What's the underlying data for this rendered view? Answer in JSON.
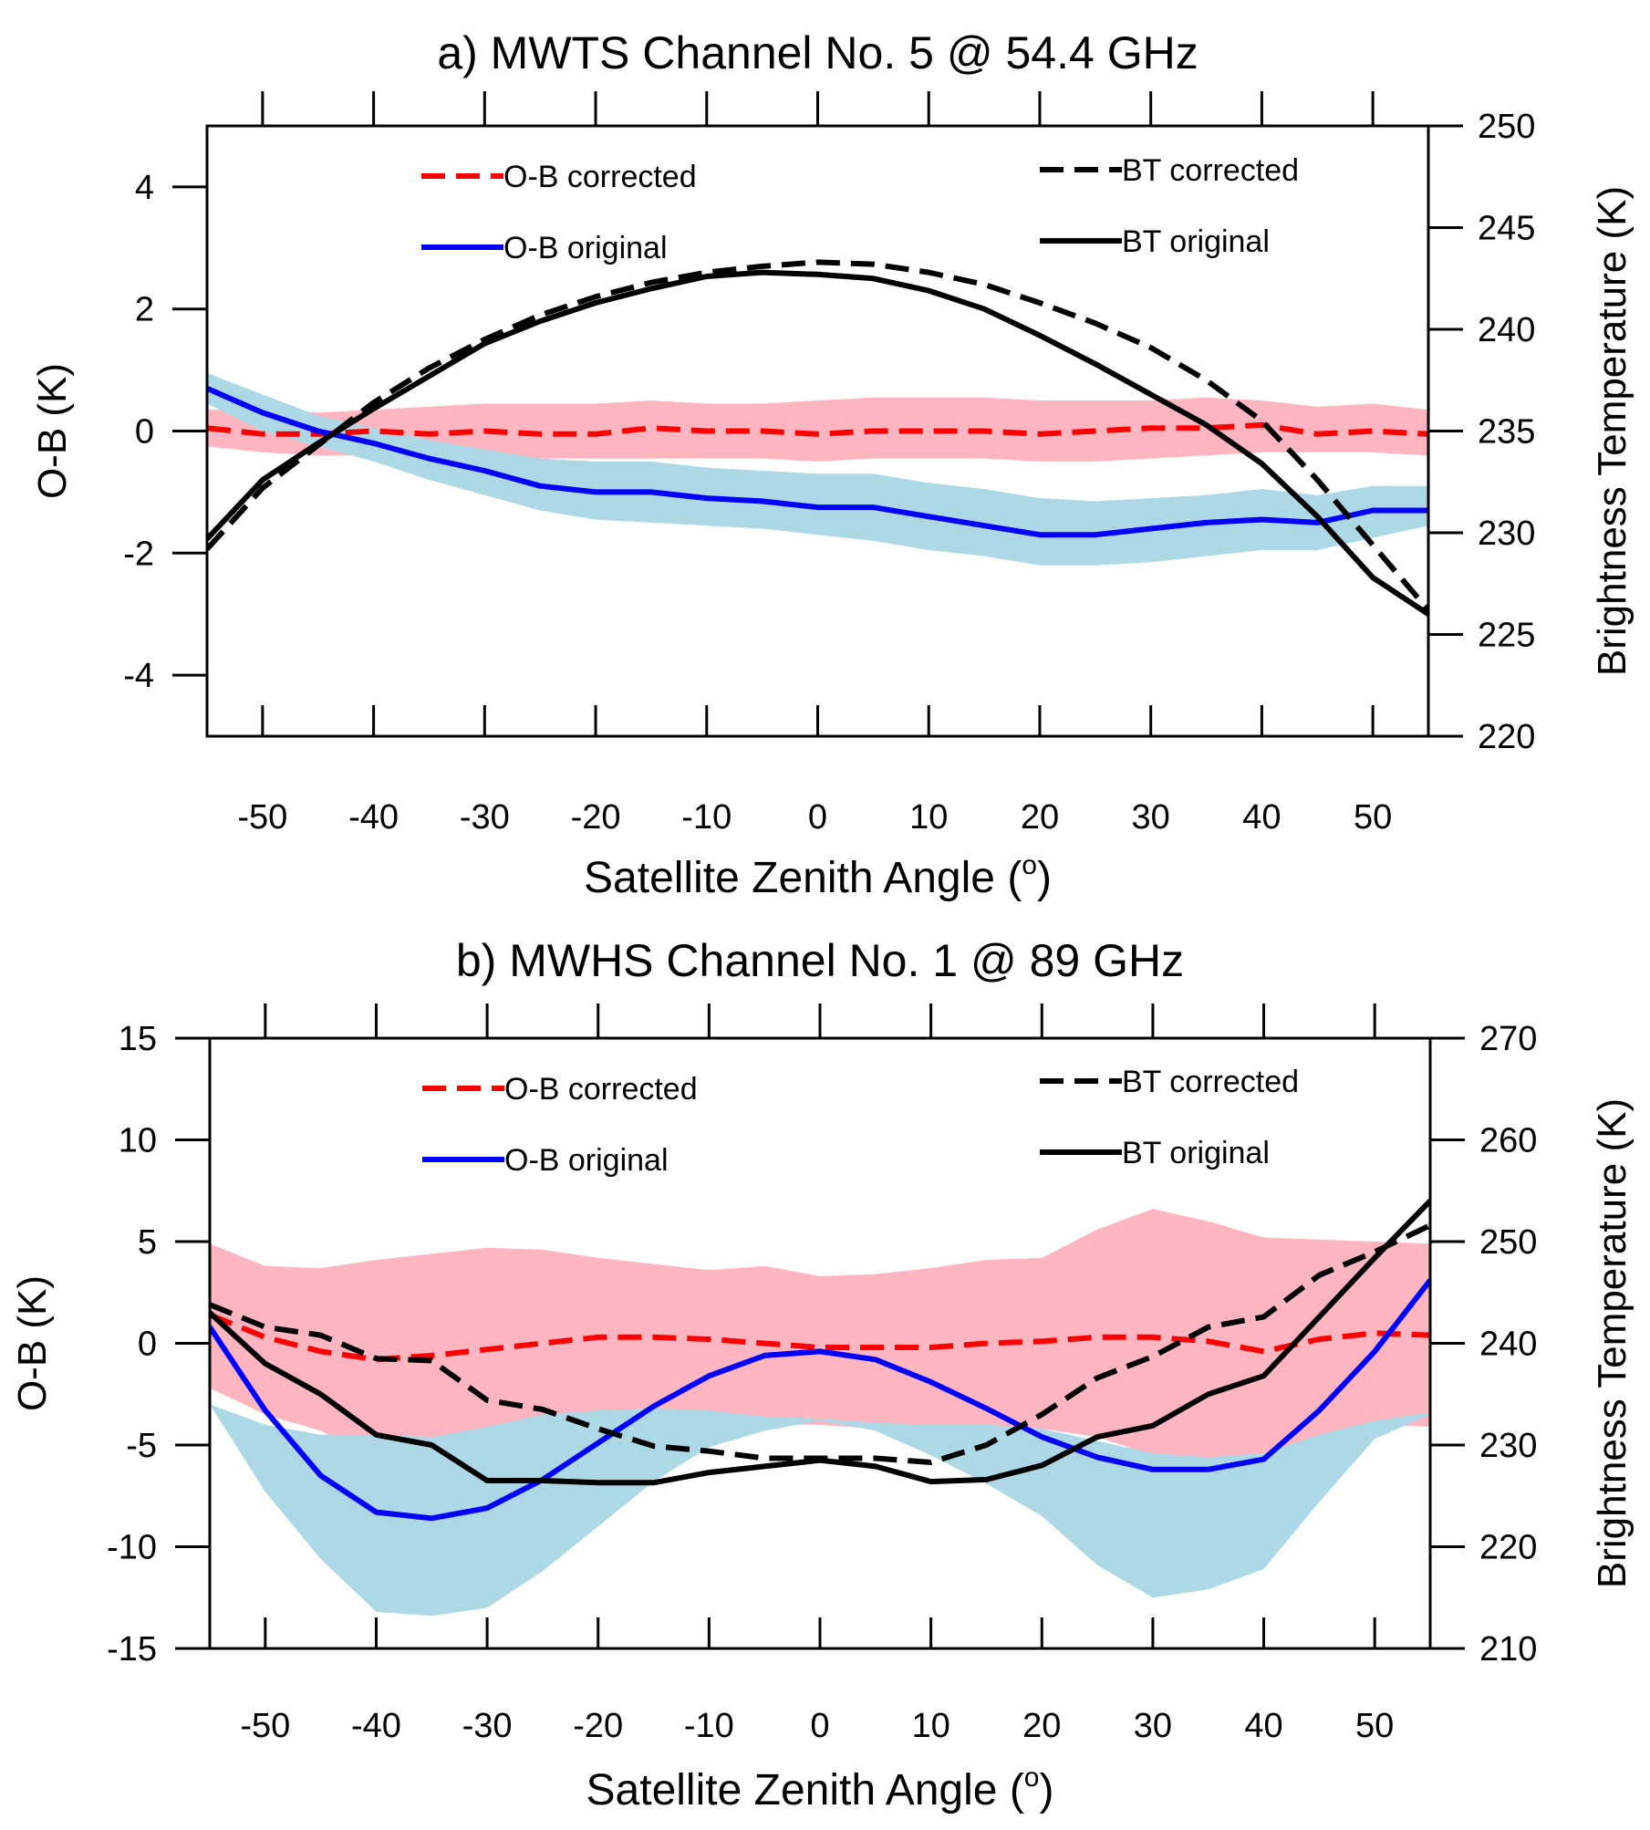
{
  "chart_data": [
    {
      "type": "line",
      "title": "a) MWTS Channel No. 5 @ 54.4 GHz",
      "xlabel": "Satellite Zenith Angle (",
      "xlabel_sup": "o",
      "xlabel_end": ")",
      "ylabel": "O-B (K)",
      "ylabel_right": "Brightness Temperature (K)",
      "xlim": [
        -55,
        55
      ],
      "ylim": [
        -5,
        5
      ],
      "ylim_right": [
        220,
        250
      ],
      "x_ticks": [
        -50,
        -40,
        -30,
        -20,
        -10,
        0,
        10,
        20,
        30,
        40,
        50
      ],
      "y_ticks": [
        -4,
        -2,
        0,
        2,
        4
      ],
      "y_ticks_right": [
        220,
        225,
        230,
        235,
        240,
        245,
        250
      ],
      "x": [
        -55,
        -50,
        -45,
        -40,
        -35,
        -30,
        -25,
        -20,
        -15,
        -10,
        -5,
        0,
        5,
        10,
        15,
        20,
        25,
        30,
        35,
        40,
        45,
        50,
        55
      ],
      "bands": [
        {
          "series": "O-B corrected",
          "color": "#ffb6c1",
          "upper": [
            0.35,
            0.35,
            0.3,
            0.35,
            0.4,
            0.45,
            0.45,
            0.45,
            0.5,
            0.45,
            0.45,
            0.5,
            0.55,
            0.55,
            0.55,
            0.5,
            0.5,
            0.5,
            0.55,
            0.5,
            0.4,
            0.45,
            0.35
          ],
          "lower": [
            -0.25,
            -0.35,
            -0.4,
            -0.4,
            -0.4,
            -0.45,
            -0.45,
            -0.45,
            -0.45,
            -0.45,
            -0.45,
            -0.5,
            -0.45,
            -0.45,
            -0.45,
            -0.5,
            -0.5,
            -0.45,
            -0.4,
            -0.35,
            -0.35,
            -0.35,
            -0.4
          ]
        },
        {
          "series": "O-B original",
          "color": "#add8e6",
          "upper": [
            0.95,
            0.6,
            0.25,
            0.05,
            -0.15,
            -0.3,
            -0.45,
            -0.5,
            -0.5,
            -0.6,
            -0.65,
            -0.7,
            -0.7,
            -0.85,
            -0.95,
            -1.1,
            -1.15,
            -1.1,
            -1.05,
            -0.95,
            -1.05,
            -0.9,
            -0.9
          ],
          "lower": [
            0.45,
            0.0,
            -0.25,
            -0.5,
            -0.8,
            -1.05,
            -1.3,
            -1.45,
            -1.5,
            -1.55,
            -1.6,
            -1.7,
            -1.8,
            -1.95,
            -2.05,
            -2.2,
            -2.2,
            -2.15,
            -2.05,
            -1.95,
            -1.95,
            -1.75,
            -1.55
          ]
        }
      ],
      "series": [
        {
          "name": "O-B corrected",
          "axis": "left",
          "color": "#ff0000",
          "dash": true,
          "values": [
            0.05,
            -0.05,
            -0.05,
            0.0,
            -0.05,
            0.0,
            -0.05,
            -0.05,
            0.05,
            0.0,
            0.0,
            -0.05,
            0.0,
            0.0,
            0.0,
            -0.05,
            0.0,
            0.05,
            0.05,
            0.1,
            -0.05,
            0.0,
            -0.05
          ]
        },
        {
          "name": "O-B original",
          "axis": "left",
          "color": "#0000ff",
          "dash": false,
          "values": [
            0.7,
            0.3,
            0.0,
            -0.2,
            -0.45,
            -0.65,
            -0.9,
            -1.0,
            -1.0,
            -1.1,
            -1.15,
            -1.25,
            -1.25,
            -1.4,
            -1.55,
            -1.7,
            -1.7,
            -1.6,
            -1.5,
            -1.45,
            -1.5,
            -1.3,
            -1.3
          ]
        },
        {
          "name": "BT corrected",
          "axis": "right",
          "color": "#000000",
          "dash": true,
          "values": [
            229.2,
            232.2,
            234.3,
            236.4,
            238.1,
            239.5,
            240.7,
            241.6,
            242.3,
            242.8,
            243.1,
            243.3,
            243.2,
            242.8,
            242.2,
            241.3,
            240.3,
            239.1,
            237.5,
            235.5,
            232.6,
            229.4,
            226.2
          ]
        },
        {
          "name": "BT original",
          "axis": "right",
          "color": "#000000",
          "dash": false,
          "values": [
            229.7,
            232.6,
            234.4,
            236.1,
            237.7,
            239.3,
            240.4,
            241.3,
            242.0,
            242.6,
            242.8,
            242.7,
            242.5,
            241.9,
            241.0,
            239.7,
            238.3,
            236.8,
            235.3,
            233.4,
            230.8,
            227.8,
            226.0
          ]
        }
      ],
      "legend": [
        {
          "label": "O-B corrected",
          "color": "#ff0000",
          "dash": true
        },
        {
          "label": "O-B original",
          "color": "#0000ff",
          "dash": false
        },
        {
          "label": "BT corrected",
          "color": "#000000",
          "dash": true
        },
        {
          "label": "BT original",
          "color": "#000000",
          "dash": false
        }
      ]
    },
    {
      "type": "line",
      "title": "b) MWHS Channel No. 1 @ 89 GHz",
      "xlabel": "Satellite Zenith Angle (",
      "xlabel_sup": "o",
      "xlabel_end": ")",
      "ylabel": "O-B (K)",
      "ylabel_right": "Brightness Temperature (K)",
      "xlim": [
        -55,
        55
      ],
      "ylim": [
        -15,
        15
      ],
      "ylim_right": [
        210,
        270
      ],
      "x_ticks": [
        -50,
        -40,
        -30,
        -20,
        -10,
        0,
        10,
        20,
        30,
        40,
        50
      ],
      "y_ticks": [
        -15,
        -10,
        -5,
        0,
        5,
        10,
        15
      ],
      "y_ticks_right": [
        210,
        220,
        230,
        240,
        250,
        260,
        270
      ],
      "x": [
        -55,
        -50,
        -45,
        -40,
        -35,
        -30,
        -25,
        -20,
        -15,
        -10,
        -5,
        0,
        5,
        10,
        15,
        20,
        25,
        30,
        35,
        40,
        45,
        50,
        55
      ],
      "bands": [
        {
          "series": "O-B corrected",
          "color": "#ffb6c1",
          "upper": [
            4.9,
            3.8,
            3.7,
            4.1,
            4.4,
            4.7,
            4.6,
            4.2,
            3.9,
            3.6,
            3.8,
            3.3,
            3.4,
            3.7,
            4.1,
            4.2,
            5.6,
            6.6,
            6.0,
            5.2,
            5.1,
            5.0,
            4.9
          ],
          "lower": [
            -2.2,
            -3.5,
            -4.3,
            -5.6,
            -5.5,
            -5.2,
            -4.8,
            -4.0,
            -3.7,
            -3.6,
            -4.0,
            -4.0,
            -4.2,
            -4.1,
            -4.0,
            -4.2,
            -4.6,
            -5.5,
            -5.8,
            -5.7,
            -4.5,
            -4.0,
            -4.1
          ]
        },
        {
          "series": "O-B original",
          "color": "#add8e6",
          "upper": [
            -3.0,
            -4.0,
            -4.5,
            -4.5,
            -4.6,
            -4.1,
            -3.5,
            -3.3,
            -3.2,
            -3.3,
            -3.6,
            -3.7,
            -3.9,
            -4.0,
            -4.0,
            -4.2,
            -4.8,
            -5.4,
            -5.6,
            -5.4,
            -4.5,
            -3.8,
            -3.4
          ]
        },
        {
          "series": "O-B original",
          "color": "#add8e6",
          "upper": [
            -3.0,
            -4.0,
            -4.5,
            -4.5,
            -4.6,
            -4.1,
            -3.5,
            -3.3,
            -3.2,
            -3.3,
            -3.6,
            -3.7,
            -3.9,
            -4.0,
            -4.0,
            -4.2,
            -4.8,
            -5.4,
            -5.6,
            -5.4,
            -4.5,
            -3.8,
            -3.4
          ],
          "lower": [
            -3.0,
            -7.3,
            -10.6,
            -13.2,
            -13.4,
            -13.0,
            -11.2,
            -9.0,
            -6.8,
            -5.1,
            -4.3,
            -3.8,
            -4.3,
            -5.5,
            -6.9,
            -8.5,
            -10.9,
            -12.5,
            -12.1,
            -11.1,
            -7.8,
            -4.7,
            -3.5
          ]
        }
      ],
      "series": [
        {
          "name": "O-B corrected",
          "axis": "left",
          "color": "#ff0000",
          "dash": true,
          "values": [
            1.4,
            0.3,
            -0.4,
            -0.8,
            -0.6,
            -0.3,
            0.0,
            0.3,
            0.3,
            0.2,
            0.0,
            -0.2,
            -0.2,
            -0.2,
            0.0,
            0.1,
            0.3,
            0.3,
            0.1,
            -0.4,
            0.2,
            0.5,
            0.4
          ]
        },
        {
          "name": "O-B original",
          "axis": "left",
          "color": "#0000ff",
          "dash": false,
          "values": [
            0.8,
            -3.3,
            -6.5,
            -8.3,
            -8.6,
            -8.1,
            -6.7,
            -4.9,
            -3.1,
            -1.6,
            -0.6,
            -0.4,
            -0.8,
            -1.9,
            -3.2,
            -4.6,
            -5.6,
            -6.2,
            -6.2,
            -5.7,
            -3.3,
            -0.4,
            3.1
          ]
        },
        {
          "name": "BT corrected",
          "axis": "right",
          "color": "#000000",
          "dash": true,
          "values": [
            243.8,
            241.6,
            240.8,
            238.5,
            238.3,
            234.4,
            233.5,
            231.6,
            229.9,
            229.4,
            228.7,
            228.7,
            228.7,
            228.3,
            230.0,
            233.0,
            236.6,
            238.7,
            241.6,
            242.6,
            246.7,
            249.0,
            251.6
          ]
        },
        {
          "name": "BT original",
          "axis": "right",
          "color": "#000000",
          "dash": false,
          "values": [
            243.0,
            238.0,
            235.0,
            231.0,
            230.0,
            226.5,
            226.5,
            226.3,
            226.3,
            227.3,
            227.9,
            228.5,
            227.9,
            226.4,
            226.6,
            228.0,
            230.8,
            231.9,
            235.0,
            236.8,
            242.6,
            248.4,
            254.0
          ]
        }
      ],
      "legend": [
        {
          "label": "O-B corrected",
          "color": "#ff0000",
          "dash": true
        },
        {
          "label": "O-B original",
          "color": "#0000ff",
          "dash": false
        },
        {
          "label": "BT corrected",
          "color": "#000000",
          "dash": true
        },
        {
          "label": "BT original",
          "color": "#000000",
          "dash": false
        }
      ]
    }
  ]
}
